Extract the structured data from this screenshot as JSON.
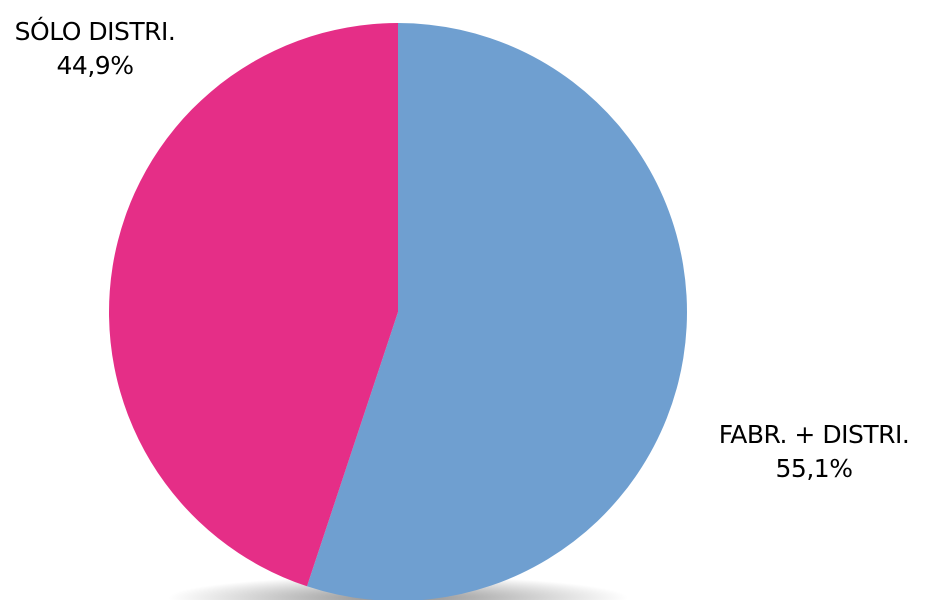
{
  "chart_data": {
    "type": "pie",
    "slices": [
      {
        "label": "FABR. + DISTRI.",
        "value": 55.1,
        "value_label": "55,1%",
        "color": "#6F9FD0"
      },
      {
        "label": "SÓLO DISTRI.",
        "value": 44.9,
        "value_label": "44,9%",
        "color": "#E52E87"
      }
    ],
    "legend": false,
    "data_labels": "outside"
  }
}
